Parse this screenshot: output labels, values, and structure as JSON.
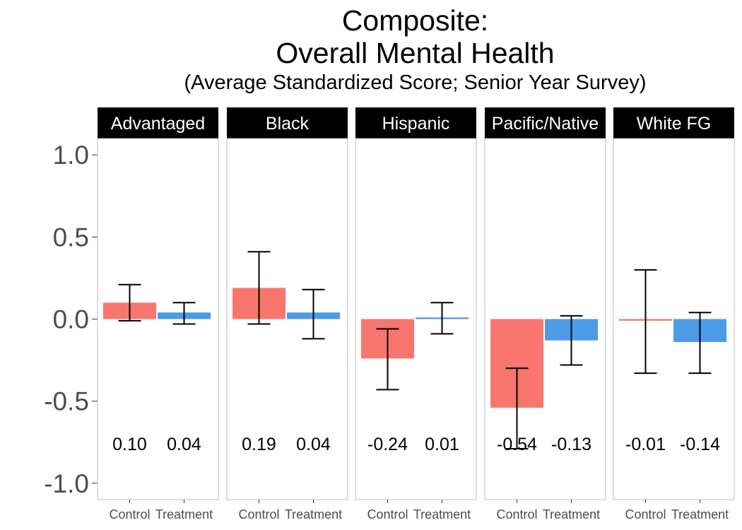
{
  "chart_data": {
    "type": "bar",
    "title": [
      "Composite:",
      "Overall Mental Health"
    ],
    "subtitle": "(Average Standardized Score; Senior Year Survey)",
    "facets": [
      "Advantaged",
      "Black",
      "Hispanic",
      "Pacific/Native",
      "White FG"
    ],
    "categories": [
      "Control",
      "Treatment"
    ],
    "colors": {
      "Control": "#F8766D",
      "Treatment": "#4C9BE8"
    },
    "ylim": [
      -1.1,
      1.1
    ],
    "yticks": [
      1.0,
      0.5,
      0.0,
      -0.5,
      -1.0
    ],
    "ytick_labels": [
      "1.0",
      "0.5",
      "0.0",
      "-0.5",
      "-1.0"
    ],
    "label_y": -0.76,
    "panels": [
      {
        "facet": "Advantaged",
        "bars": [
          {
            "group": "Control",
            "value": 0.1,
            "label": "0.10",
            "err_low": -0.01,
            "err_high": 0.21
          },
          {
            "group": "Treatment",
            "value": 0.04,
            "label": "0.04",
            "err_low": -0.03,
            "err_high": 0.1
          }
        ]
      },
      {
        "facet": "Black",
        "bars": [
          {
            "group": "Control",
            "value": 0.19,
            "label": "0.19",
            "err_low": -0.03,
            "err_high": 0.41
          },
          {
            "group": "Treatment",
            "value": 0.04,
            "label": "0.04",
            "err_low": -0.12,
            "err_high": 0.18
          }
        ]
      },
      {
        "facet": "Hispanic",
        "bars": [
          {
            "group": "Control",
            "value": -0.24,
            "label": "-0.24",
            "err_low": -0.43,
            "err_high": -0.06
          },
          {
            "group": "Treatment",
            "value": 0.01,
            "label": "0.01",
            "err_low": -0.09,
            "err_high": 0.1
          }
        ]
      },
      {
        "facet": "Pacific/Native",
        "bars": [
          {
            "group": "Control",
            "value": -0.54,
            "label": "-0.54",
            "err_low": -0.79,
            "err_high": -0.3
          },
          {
            "group": "Treatment",
            "value": -0.13,
            "label": "-0.13",
            "err_low": -0.28,
            "err_high": 0.02
          }
        ]
      },
      {
        "facet": "White FG",
        "bars": [
          {
            "group": "Control",
            "value": -0.01,
            "label": "-0.01",
            "err_low": -0.33,
            "err_high": 0.3
          },
          {
            "group": "Treatment",
            "value": -0.14,
            "label": "-0.14",
            "err_low": -0.33,
            "err_high": 0.04
          }
        ]
      }
    ]
  }
}
